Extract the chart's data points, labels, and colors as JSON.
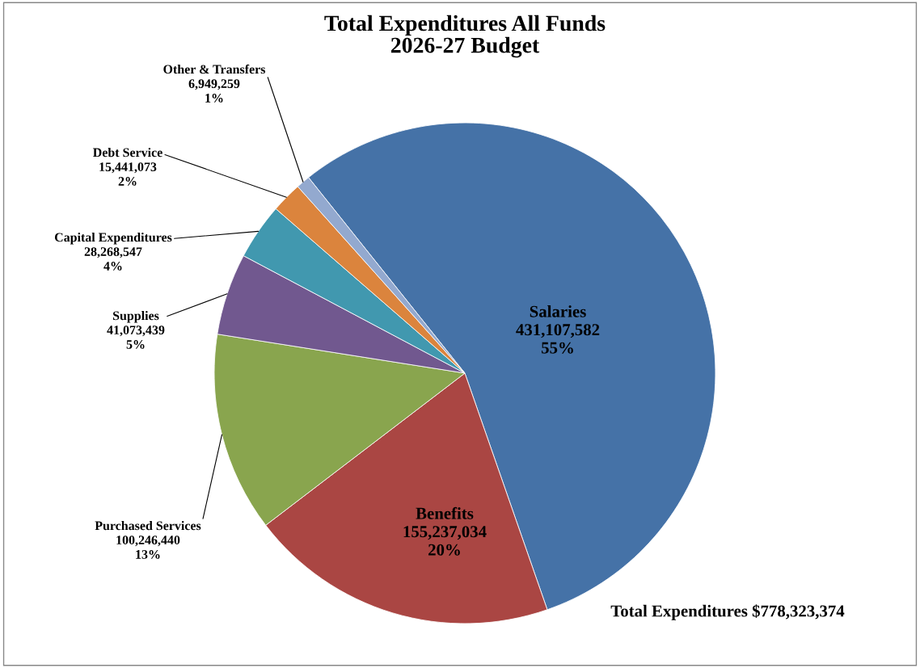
{
  "chart_data": {
    "type": "pie",
    "title": "Total Expenditures All Funds\n2026-27 Budget",
    "categories": [
      "Salaries",
      "Benefits",
      "Purchased Services",
      "Supplies",
      "Capital Expenditures",
      "Debt Service",
      "Other & Transfers"
    ],
    "values": [
      431107582,
      155237034,
      100246440,
      41073439,
      28268547,
      15441073,
      6949259
    ],
    "colors": [
      "#4572a7",
      "#aa4643",
      "#89a54e",
      "#71588f",
      "#4198af",
      "#db843d",
      "#93a9cf"
    ],
    "value_labels": [
      "431,107,582\n55%",
      "155,237,034\n20%",
      "100,246,440\n13%",
      "41,073,439\n5%",
      "28,268,547\n4%",
      "15,441,073\n2%",
      "6,949,259\n1%"
    ],
    "annotations": [
      "Total Expenditures $778,323,374"
    ]
  }
}
